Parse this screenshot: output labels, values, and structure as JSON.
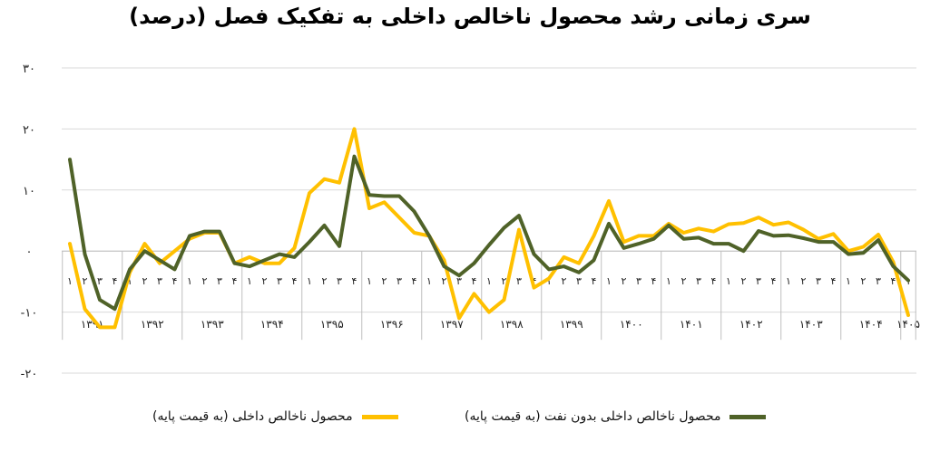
{
  "chart_data": {
    "type": "line",
    "title": "سری زمانی رشد محصول ناخالص داخلی به تفکیک فصل (درصد)",
    "xlabel": "",
    "ylabel": "",
    "ylim": [
      -20,
      30
    ],
    "yticks": [
      {
        "value": 30,
        "label": "۳۰"
      },
      {
        "value": 20,
        "label": "۲۰"
      },
      {
        "value": 10,
        "label": "۱۰"
      },
      {
        "value": 0,
        "label": "۰"
      },
      {
        "value": -10,
        "label": "-۱۰"
      },
      {
        "value": -20,
        "label": "-۲۰"
      }
    ],
    "quarter_labels": [
      "۱",
      "۲",
      "۳",
      "۴"
    ],
    "years": [
      "۱۳۹۱",
      "۱۳۹۲",
      "۱۳۹۳",
      "۱۳۹۴",
      "۱۳۹۵",
      "۱۳۹۶",
      "۱۳۹۷",
      "۱۳۹۸",
      "۱۳۹۹",
      "۱۴۰۰",
      "۱۴۰۱",
      "۱۴۰۲",
      "۱۴۰۳",
      "۱۴۰۴",
      "۱۴۰۵"
    ],
    "quarters_per_year": [
      4,
      4,
      4,
      4,
      4,
      4,
      4,
      4,
      4,
      4,
      4,
      4,
      4,
      4,
      1
    ],
    "legend_position": "bottom",
    "grid": true,
    "series": [
      {
        "name": "محصول ناخالص داخلی (به قیمت پایه)",
        "color": "#FFC000",
        "values": [
          1.2,
          -9.5,
          -12.5,
          -12.5,
          -3.5,
          1.2,
          -2.0,
          0.0,
          2.0,
          3.0,
          3.0,
          -2.0,
          -1.0,
          -2.0,
          -2.0,
          0.5,
          9.5,
          11.8,
          11.2,
          20.0,
          7.0,
          8.0,
          5.5,
          3.0,
          2.5,
          -1.5,
          -11.0,
          -7.0,
          -10.0,
          -8.0,
          3.5,
          -6.0,
          -4.5,
          -1.0,
          -2.0,
          2.5,
          8.2,
          1.5,
          2.5,
          2.5,
          4.5,
          3.0,
          3.7,
          3.2,
          4.4,
          4.6,
          5.5,
          4.3,
          4.7,
          3.5,
          2.0,
          2.8,
          0.0,
          0.7,
          2.7,
          -1.8,
          -10.5
        ]
      },
      {
        "name": "محصول ناخالص داخلی بدون نفت (به قیمت پایه)",
        "color": "#4F6228",
        "values": [
          15.0,
          -0.5,
          -8.0,
          -9.5,
          -3.0,
          0.0,
          -1.5,
          -3.0,
          2.5,
          3.2,
          3.2,
          -2.0,
          -2.5,
          -1.5,
          -0.5,
          -1.0,
          1.5,
          4.2,
          0.8,
          15.5,
          9.2,
          9.0,
          9.0,
          6.5,
          2.5,
          -2.5,
          -4.0,
          -2.0,
          1.0,
          3.8,
          5.8,
          -0.5,
          -3.0,
          -2.5,
          -3.5,
          -1.5,
          4.5,
          0.5,
          1.2,
          2.0,
          4.2,
          2.0,
          2.2,
          1.2,
          1.2,
          0.0,
          3.3,
          2.5,
          2.6,
          2.1,
          1.5,
          1.5,
          -0.5,
          -0.3,
          1.8,
          -2.5,
          -4.8
        ]
      }
    ]
  }
}
